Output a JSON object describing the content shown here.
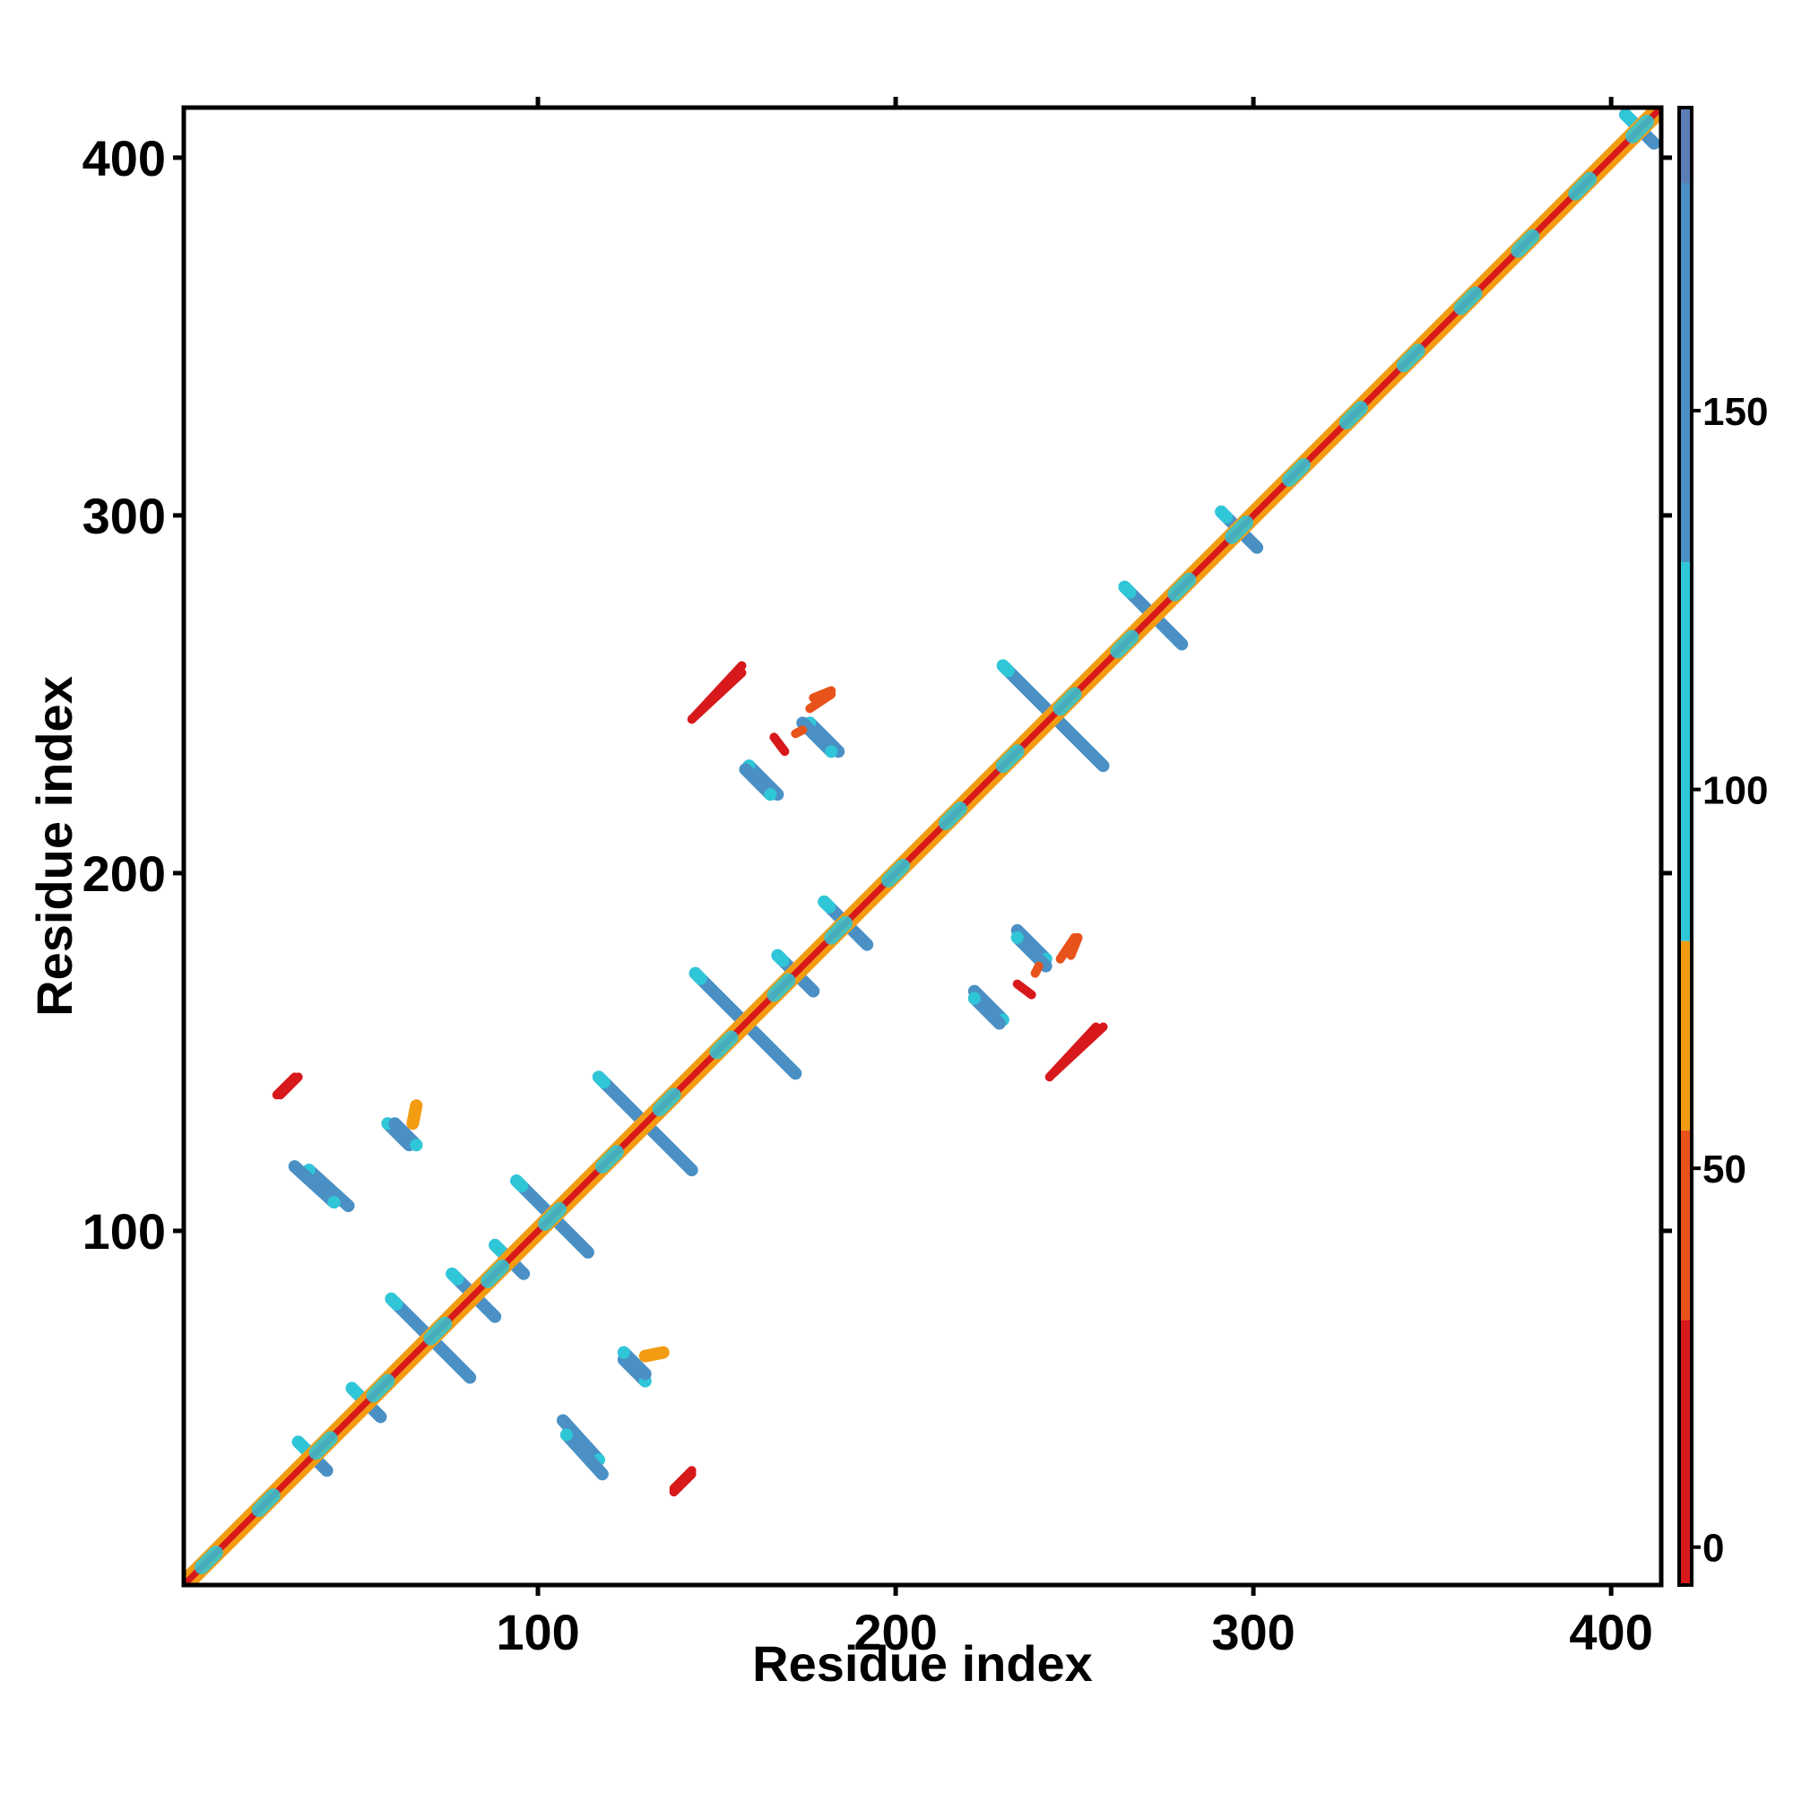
{
  "chart_data": {
    "type": "heatmap",
    "title": "",
    "xlabel": "Residue index",
    "ylabel": "Residue index",
    "xlim": [
      1,
      414
    ],
    "ylim": [
      1,
      414
    ],
    "xticks": [
      100,
      200,
      300,
      400
    ],
    "yticks": [
      100,
      200,
      300,
      400
    ],
    "grid": false,
    "legend": "colorbar-right",
    "colorbar": {
      "range": [
        -5,
        190
      ],
      "ticks": [
        0,
        50,
        100,
        150
      ],
      "bands": [
        {
          "from": -5,
          "to": 30,
          "color": "#d7191c"
        },
        {
          "from": 30,
          "to": 55,
          "color": "#e8531b"
        },
        {
          "from": 55,
          "to": 80,
          "color": "#f39c12"
        },
        {
          "from": 80,
          "to": 130,
          "color": "#2fc7d8"
        },
        {
          "from": 130,
          "to": 180,
          "color": "#4a90c4"
        },
        {
          "from": 180,
          "to": 190,
          "color": "#5b7fb5"
        }
      ]
    },
    "colors": {
      "diagonal_core": "#d7191c",
      "diagonal_halo": "#f39c12",
      "helix_band": "#2fc7d8",
      "parallel_strand": "#e8531b",
      "antiparallel_strand": "#4a90c4"
    },
    "diagonal": {
      "from": 1,
      "to": 414
    },
    "features": [
      {
        "kind": "cross",
        "center": [
          37,
          37
        ],
        "half": 4,
        "value": 140
      },
      {
        "kind": "cross",
        "center": [
          52,
          52
        ],
        "half": 4,
        "value": 95
      },
      {
        "kind": "cross",
        "center": [
          70,
          70
        ],
        "half": 11,
        "value": 150
      },
      {
        "kind": "cross",
        "center": [
          82,
          82
        ],
        "half": 6,
        "value": 150
      },
      {
        "kind": "cross",
        "center": [
          92,
          92
        ],
        "half": 4,
        "value": 95
      },
      {
        "kind": "cross",
        "center": [
          104,
          104
        ],
        "half": 10,
        "value": 150
      },
      {
        "kind": "cross",
        "center": [
          130,
          130
        ],
        "half": 13,
        "value": 150
      },
      {
        "kind": "cross",
        "center": [
          158,
          158
        ],
        "half": 14,
        "value": 150
      },
      {
        "kind": "cross",
        "center": [
          172,
          172
        ],
        "half": 5,
        "value": 150
      },
      {
        "kind": "cross",
        "center": [
          186,
          186
        ],
        "half": 6,
        "value": 150
      },
      {
        "kind": "cross",
        "center": [
          244,
          244
        ],
        "half": 14,
        "value": 150
      },
      {
        "kind": "cross",
        "center": [
          272,
          272
        ],
        "half": 8,
        "value": 150
      },
      {
        "kind": "cross",
        "center": [
          296,
          296
        ],
        "half": 5,
        "value": 95
      },
      {
        "kind": "cross",
        "center": [
          408,
          408
        ],
        "half": 4,
        "value": 95
      },
      {
        "kind": "segment",
        "from": [
          33,
          143
        ],
        "to": [
          28,
          138
        ],
        "value": 20
      },
      {
        "kind": "segment",
        "from": [
          36,
          117
        ],
        "to": [
          47,
          107
        ],
        "value": 150
      },
      {
        "kind": "segment",
        "from": [
          58,
          130
        ],
        "to": [
          64,
          124
        ],
        "value": 150
      },
      {
        "kind": "segment",
        "from": [
          108,
          43
        ],
        "to": [
          118,
          32
        ],
        "value": 150
      },
      {
        "kind": "segment",
        "from": [
          124,
          66
        ],
        "to": [
          130,
          60
        ],
        "value": 150
      },
      {
        "kind": "segment",
        "from": [
          138,
          27
        ],
        "to": [
          143,
          32
        ],
        "value": 20
      },
      {
        "kind": "segment",
        "from": [
          143,
          243
        ],
        "to": [
          157,
          256
        ],
        "value": 20
      },
      {
        "kind": "segment",
        "from": [
          159,
          230
        ],
        "to": [
          167,
          222
        ],
        "value": 150
      },
      {
        "kind": "segment",
        "from": [
          176,
          242
        ],
        "to": [
          184,
          234
        ],
        "value": 150
      },
      {
        "kind": "segment",
        "from": [
          222,
          165
        ],
        "to": [
          229,
          158
        ],
        "value": 150
      },
      {
        "kind": "segment",
        "from": [
          234,
          182
        ],
        "to": [
          242,
          174
        ],
        "value": 150
      },
      {
        "kind": "segment",
        "from": [
          244,
          144
        ],
        "to": [
          258,
          157
        ],
        "value": 20
      },
      {
        "kind": "segment",
        "from": [
          177,
          249
        ],
        "to": [
          182,
          251
        ],
        "value": 50
      },
      {
        "kind": "segment",
        "from": [
          174,
          240
        ],
        "to": [
          172,
          239
        ],
        "value": 50
      },
      {
        "kind": "segment",
        "from": [
          246,
          176
        ],
        "to": [
          250,
          182
        ],
        "value": 50
      },
      {
        "kind": "segment",
        "from": [
          234,
          169
        ],
        "to": [
          238,
          166
        ],
        "value": 25
      },
      {
        "kind": "segment",
        "from": [
          130,
          65
        ],
        "to": [
          135,
          66
        ],
        "value": 60
      }
    ]
  }
}
